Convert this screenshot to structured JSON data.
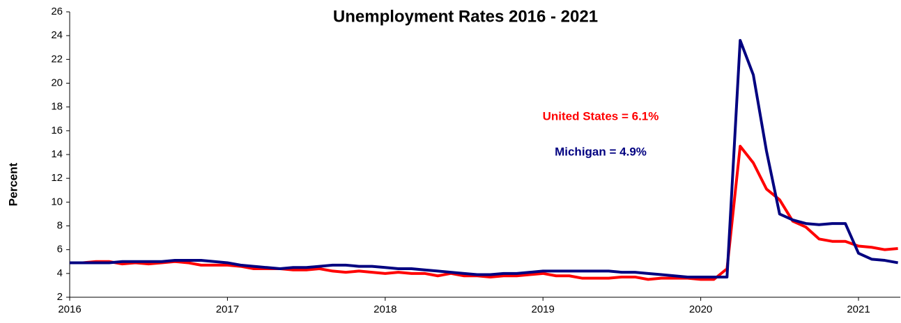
{
  "chart_data": {
    "type": "line",
    "title": "Unemployment Rates   2016  -  2021",
    "y_label": "Percent",
    "categories": [
      "2016",
      null,
      null,
      null,
      null,
      null,
      null,
      null,
      null,
      null,
      null,
      null,
      "2017",
      null,
      null,
      null,
      null,
      null,
      null,
      null,
      null,
      null,
      null,
      null,
      "2018",
      null,
      null,
      null,
      null,
      null,
      null,
      null,
      null,
      null,
      null,
      null,
      "2019",
      null,
      null,
      null,
      null,
      null,
      null,
      null,
      null,
      null,
      null,
      null,
      "2020",
      null,
      null,
      null,
      null,
      null,
      null,
      null,
      null,
      null,
      null,
      null,
      "2021",
      null,
      null,
      null
    ],
    "series": [
      {
        "name": "United States",
        "color": "#ff0000",
        "values": [
          4.9,
          4.9,
          5.0,
          5.0,
          4.8,
          4.9,
          4.8,
          4.9,
          5.0,
          4.9,
          4.7,
          4.7,
          4.7,
          4.6,
          4.4,
          4.4,
          4.4,
          4.3,
          4.3,
          4.4,
          4.2,
          4.1,
          4.2,
          4.1,
          4.0,
          4.1,
          4.0,
          4.0,
          3.8,
          4.0,
          3.8,
          3.8,
          3.7,
          3.8,
          3.8,
          3.9,
          4.0,
          3.8,
          3.8,
          3.6,
          3.6,
          3.6,
          3.7,
          3.7,
          3.5,
          3.6,
          3.6,
          3.6,
          3.5,
          3.5,
          4.4,
          14.7,
          13.3,
          11.1,
          10.2,
          8.4,
          7.9,
          6.9,
          6.7,
          6.7,
          6.3,
          6.2,
          6.0,
          6.1
        ]
      },
      {
        "name": "Michigan",
        "color": "#000080",
        "values": [
          4.9,
          4.9,
          4.9,
          4.9,
          5.0,
          5.0,
          5.0,
          5.0,
          5.1,
          5.1,
          5.1,
          5.0,
          4.9,
          4.7,
          4.6,
          4.5,
          4.4,
          4.5,
          4.5,
          4.6,
          4.7,
          4.7,
          4.6,
          4.6,
          4.5,
          4.4,
          4.4,
          4.3,
          4.2,
          4.1,
          4.0,
          3.9,
          3.9,
          4.0,
          4.0,
          4.1,
          4.2,
          4.2,
          4.2,
          4.2,
          4.2,
          4.2,
          4.1,
          4.1,
          4.0,
          3.9,
          3.8,
          3.7,
          3.7,
          3.7,
          3.7,
          23.6,
          20.7,
          14.3,
          9.0,
          8.5,
          8.2,
          8.1,
          8.2,
          8.2,
          5.7,
          5.2,
          5.1,
          4.9
        ]
      }
    ],
    "annotations": [
      {
        "text": "United States = 6.1%",
        "color": "#ff0000"
      },
      {
        "text": "Michigan = 4.9%",
        "color": "#000080"
      }
    ],
    "ylim": [
      2,
      26
    ],
    "yticks": [
      2,
      4,
      6,
      8,
      10,
      12,
      14,
      16,
      18,
      20,
      22,
      24,
      26
    ]
  }
}
